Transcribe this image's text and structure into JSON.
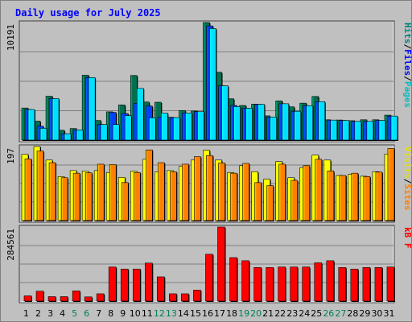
{
  "chart_data": [
    {
      "type": "bar",
      "title": "Daily usage for July 2025",
      "y_max_label": "10191",
      "ylabels": [
        {
          "text": "Pages",
          "color": "#00c0c0"
        },
        {
          "text": "Files",
          "color": "#0000ff"
        },
        {
          "text": "Hits",
          "color": "#008080"
        }
      ],
      "categories": [
        "1",
        "2",
        "3",
        "4",
        "5",
        "6",
        "7",
        "8",
        "9",
        "10",
        "11",
        "12",
        "13",
        "14",
        "15",
        "16",
        "17",
        "18",
        "19",
        "20",
        "21",
        "22",
        "23",
        "24",
        "25",
        "26",
        "27",
        "28",
        "29",
        "30",
        "31"
      ],
      "series": [
        {
          "name": "Hits",
          "color": "#007050",
          "values": [
            2780,
            1640,
            3800,
            850,
            1000,
            5620,
            1700,
            2450,
            3050,
            5600,
            3300,
            3280,
            1980,
            2560,
            2520,
            10191,
            5880,
            3580,
            3000,
            3120,
            2100,
            3400,
            2880,
            3200,
            3780,
            1760,
            1740,
            1680,
            1760,
            1760,
            2160
          ]
        },
        {
          "name": "Files",
          "color": "#0040ff",
          "values": [
            2650,
            1200,
            3600,
            550,
            880,
            5420,
            1350,
            2400,
            2300,
            3180,
            2950,
            2000,
            1950,
            2350,
            2460,
            9900,
            4700,
            3000,
            2760,
            3100,
            2000,
            3150,
            2500,
            2980,
            3330,
            1730,
            1700,
            1620,
            1620,
            1700,
            2080
          ]
        },
        {
          "name": "Pages",
          "color": "#00e0ff",
          "values": [
            2650,
            1020,
            3600,
            550,
            880,
            5420,
            1350,
            1350,
            2120,
            4480,
            1930,
            2350,
            1950,
            2350,
            2460,
            9670,
            4700,
            2900,
            2760,
            3100,
            2000,
            3150,
            2500,
            2980,
            3330,
            1730,
            1700,
            1620,
            1620,
            1700,
            2080
          ]
        }
      ],
      "ylim": [
        0,
        10191
      ]
    },
    {
      "type": "bar",
      "y_max_label": "197",
      "ylabels": [
        {
          "text": "Sites",
          "color": "#ff8000"
        },
        {
          "text": "Visits",
          "color": "#e0e000"
        }
      ],
      "categories": [
        "1",
        "2",
        "3",
        "4",
        "5",
        "6",
        "7",
        "8",
        "9",
        "10",
        "11",
        "12",
        "13",
        "14",
        "15",
        "16",
        "17",
        "18",
        "19",
        "20",
        "21",
        "22",
        "23",
        "24",
        "25",
        "26",
        "27",
        "28",
        "29",
        "30",
        "31"
      ],
      "series": [
        {
          "name": "Visits",
          "color": "#ffff00",
          "values": [
            176,
            197,
            161,
            117,
            133,
            131,
            133,
            128,
            115,
            131,
            163,
            129,
            133,
            144,
            161,
            187,
            161,
            128,
            146,
            130,
            110,
            157,
            114,
            141,
            174,
            161,
            120,
            123,
            118,
            130,
            177
          ]
        },
        {
          "name": "Sites",
          "color": "#ff8000",
          "values": [
            164,
            185,
            154,
            114,
            126,
            127,
            150,
            149,
            101,
            128,
            188,
            154,
            130,
            150,
            170,
            173,
            153,
            126,
            152,
            101,
            93,
            150,
            107,
            146,
            163,
            132,
            120,
            126,
            117,
            129,
            192
          ]
        }
      ],
      "ylim": [
        0,
        197
      ]
    },
    {
      "type": "bar",
      "y_max_label": "284561",
      "ylabels": [
        {
          "text": "kB F",
          "color": "#ff0000"
        }
      ],
      "categories": [
        "1",
        "2",
        "3",
        "4",
        "5",
        "6",
        "7",
        "8",
        "9",
        "10",
        "11",
        "12",
        "13",
        "14",
        "15",
        "16",
        "17",
        "18",
        "19",
        "20",
        "21",
        "22",
        "23",
        "24",
        "25",
        "26",
        "27",
        "28",
        "29",
        "30",
        "31"
      ],
      "series": [
        {
          "name": "kB F",
          "color": "#ff0000",
          "values": [
            20000,
            38000,
            17000,
            17000,
            39000,
            16000,
            28000,
            131000,
            123000,
            123000,
            146000,
            93000,
            28000,
            28000,
            42000,
            180000,
            284561,
            167000,
            155000,
            129000,
            129000,
            131000,
            131000,
            131000,
            147000,
            155000,
            129000,
            123000,
            129000,
            129000,
            131000
          ]
        }
      ],
      "ylim": [
        0,
        284561
      ]
    }
  ],
  "weekend_days": [
    5,
    6,
    12,
    13,
    19,
    20,
    26,
    27
  ],
  "colors": {
    "weekday_label": "#000000",
    "weekend_label": "#008050",
    "title": "#0000ff",
    "panel_bg": "#c0c0c0"
  }
}
